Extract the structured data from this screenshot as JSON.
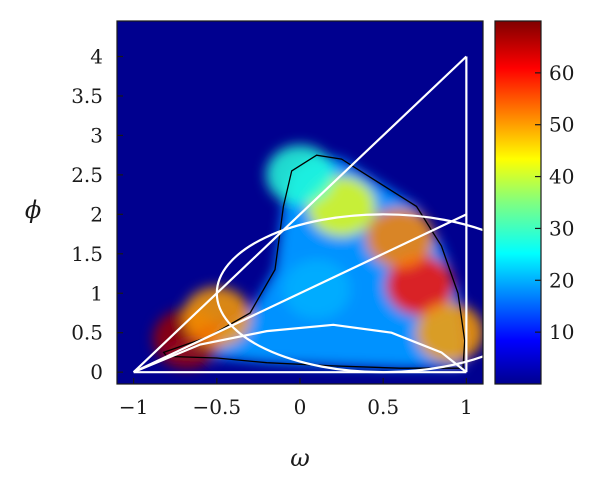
{
  "chart_data": {
    "type": "heatmap",
    "xlabel": "ω",
    "ylabel": "ϕ",
    "xlim": [
      -1.1,
      1.1
    ],
    "ylim": [
      -0.15,
      4.45
    ],
    "x_ticks": [
      "−1",
      "−0.5",
      "0",
      "0.5",
      "1"
    ],
    "x_tick_values": [
      -1,
      -0.5,
      0,
      0.5,
      1
    ],
    "y_ticks": [
      "0",
      "0.5",
      "1",
      "1.5",
      "2",
      "2.5",
      "3",
      "3.5",
      "4"
    ],
    "y_tick_values": [
      0,
      0.5,
      1,
      1.5,
      2,
      2.5,
      3,
      3.5,
      4
    ],
    "colorbar": {
      "range": [
        0,
        70
      ],
      "ticks": [
        "10",
        "20",
        "30",
        "40",
        "50",
        "60"
      ],
      "tick_values": [
        10,
        20,
        30,
        40,
        50,
        60
      ],
      "colormap": "jet"
    },
    "density_peaks": [
      {
        "omega": -0.68,
        "phi": 0.42,
        "value": 68
      },
      {
        "omega": -0.5,
        "phi": 0.7,
        "value": 50
      },
      {
        "omega": 0.72,
        "phi": 1.1,
        "value": 60
      },
      {
        "omega": 0.6,
        "phi": 1.7,
        "value": 52
      },
      {
        "omega": 0.9,
        "phi": 0.5,
        "value": 50
      },
      {
        "omega": 0.25,
        "phi": 2.1,
        "value": 42
      },
      {
        "omega": 0.1,
        "phi": 1.05,
        "value": 20
      },
      {
        "omega": 0.0,
        "phi": 2.5,
        "value": 28
      }
    ],
    "overlay_lines": [
      {
        "points": [
          [
            -1,
            0
          ],
          [
            1,
            4
          ]
        ]
      },
      {
        "points": [
          [
            -1,
            0
          ],
          [
            1,
            2
          ]
        ]
      },
      {
        "points": [
          [
            -1,
            0
          ],
          [
            1,
            0
          ]
        ]
      },
      {
        "points": [
          [
            1,
            0
          ],
          [
            1,
            4
          ]
        ]
      }
    ],
    "overlay_circle": {
      "center": [
        0.5,
        1
      ],
      "radius": 1
    },
    "overlay_curves": [
      {
        "points": [
          [
            -1,
            0
          ],
          [
            -0.6,
            0.35
          ],
          [
            -0.2,
            0.52
          ],
          [
            0.2,
            0.6
          ],
          [
            0.55,
            0.5
          ],
          [
            0.85,
            0.25
          ],
          [
            1,
            0
          ]
        ]
      }
    ],
    "colors": {
      "background": "#00008f",
      "overlay": "#ffffff",
      "contour": "#000000"
    }
  }
}
